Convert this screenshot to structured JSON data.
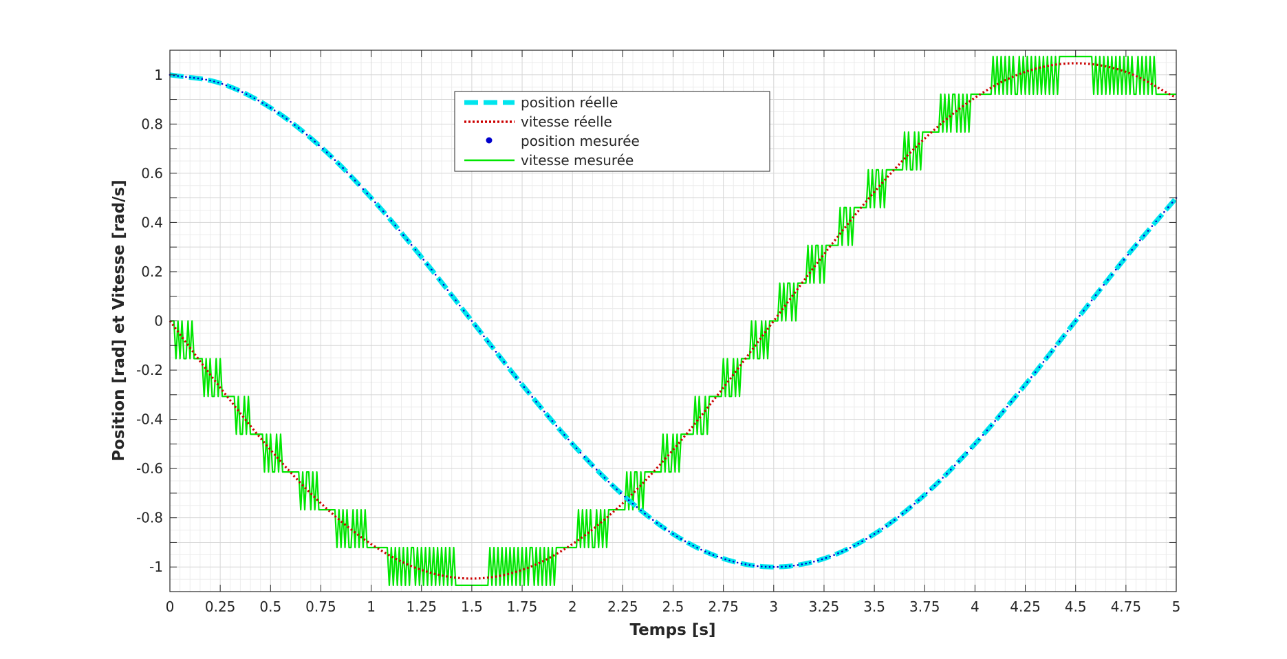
{
  "chart_data": {
    "type": "line",
    "title": "",
    "xlabel": "Temps [s]",
    "ylabel": "Position [rad] et Vitesse [rad/s]",
    "xlim": [
      0,
      5
    ],
    "ylim": [
      -1.1,
      1.1
    ],
    "xticks": [
      "0",
      "0.25",
      "0.5",
      "0.75",
      "1",
      "1.25",
      "1.5",
      "1.75",
      "2",
      "2.25",
      "2.5",
      "2.75",
      "3",
      "3.25",
      "3.5",
      "3.75",
      "4",
      "4.25",
      "4.5",
      "4.75",
      "5"
    ],
    "yticks": [
      "1",
      "0.8",
      "0.6",
      "0.4",
      "0.2",
      "0",
      "-0.2",
      "-0.4",
      "-0.6",
      "-0.8",
      "-1"
    ],
    "grid": true,
    "minor_grid": true,
    "legend_position": "top-center",
    "series": [
      {
        "name": "position réelle",
        "color": "#00e5ee",
        "style": "dashed",
        "x": [
          0,
          0.25,
          0.5,
          0.75,
          1,
          1.25,
          1.5,
          1.75,
          2,
          2.25,
          2.5,
          2.75,
          3,
          3.25,
          3.5,
          3.75,
          4,
          4.25,
          4.5,
          4.75,
          5
        ],
        "values": [
          1.0,
          0.966,
          0.866,
          0.707,
          0.5,
          0.259,
          0.0,
          -0.259,
          -0.5,
          -0.707,
          -0.866,
          -0.966,
          -1.0,
          -0.966,
          -0.866,
          -0.707,
          -0.5,
          -0.259,
          0.0,
          0.259,
          0.5
        ]
      },
      {
        "name": "vitesse réelle",
        "color": "#cc0000",
        "style": "dotted",
        "x": [
          0,
          0.25,
          0.5,
          0.75,
          1,
          1.25,
          1.5,
          1.75,
          2,
          2.25,
          2.5,
          2.75,
          3,
          3.25,
          3.5,
          3.75,
          4,
          4.25,
          4.5,
          4.75,
          5
        ],
        "values": [
          0.0,
          -0.271,
          -0.524,
          -0.741,
          -0.907,
          -1.012,
          -1.047,
          -1.012,
          -0.907,
          -0.741,
          -0.524,
          -0.271,
          0.0,
          0.271,
          0.524,
          0.741,
          0.907,
          1.012,
          1.047,
          1.012,
          0.907
        ]
      },
      {
        "name": "position mesurée",
        "color": "#0000cc",
        "style": "markers",
        "x": [
          0,
          0.25,
          0.5,
          0.75,
          1,
          1.25,
          1.5,
          1.75,
          2,
          2.25,
          2.5,
          2.75,
          3,
          3.25,
          3.5,
          3.75,
          4,
          4.25,
          4.5,
          4.75,
          5
        ],
        "values": [
          1.0,
          0.966,
          0.866,
          0.707,
          0.5,
          0.259,
          0.0,
          -0.259,
          -0.5,
          -0.707,
          -0.866,
          -0.966,
          -1.0,
          -0.966,
          -0.866,
          -0.707,
          -0.5,
          -0.259,
          0.0,
          0.259,
          0.5
        ]
      },
      {
        "name": "vitesse mesurée",
        "color": "#00e600",
        "style": "solid",
        "quantization_step": 0.1535,
        "x": [
          0,
          0.25,
          0.5,
          0.75,
          1,
          1.25,
          1.5,
          1.75,
          2,
          2.25,
          2.5,
          2.75,
          3,
          3.25,
          3.5,
          3.75,
          4,
          4.25,
          4.5,
          4.75,
          5
        ],
        "values": [
          0.0,
          -0.271,
          -0.524,
          -0.741,
          -0.907,
          -1.012,
          -1.047,
          -1.012,
          -0.907,
          -0.741,
          -0.524,
          -0.271,
          0.0,
          0.271,
          0.524,
          0.741,
          0.907,
          1.012,
          1.047,
          1.012,
          0.907
        ]
      }
    ]
  }
}
